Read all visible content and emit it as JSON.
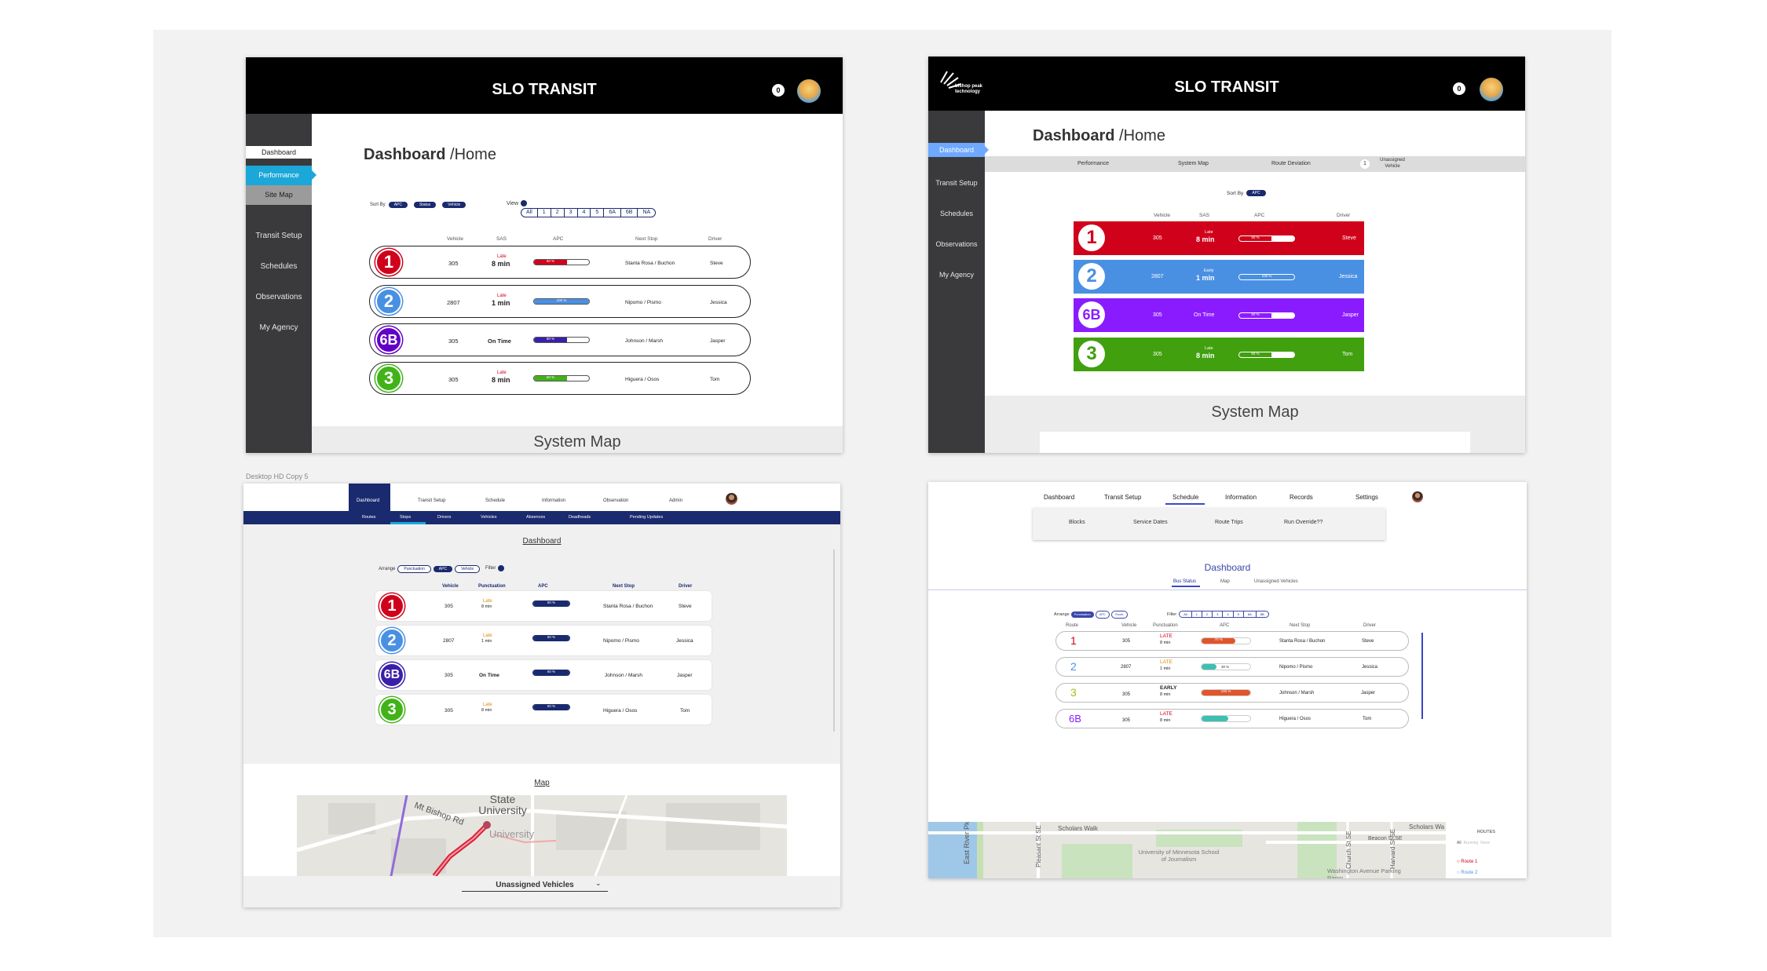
{
  "artboard_label": "Desktop HD Copy 5",
  "f1": {
    "app_title": "SLO TRANSIT",
    "notification_count": "0",
    "nav": [
      "Dashboard",
      "Performance",
      "Site Map",
      "Transit Setup",
      "Schedules",
      "Observations",
      "My Agency"
    ],
    "page_title": "Dashboard",
    "page_subtitle": "/Home",
    "sort_label": "Sort By",
    "sort_options": [
      "APC",
      "Status",
      "Vehicle"
    ],
    "view_label": "View",
    "view_segments": [
      "All",
      "1",
      "2",
      "3",
      "4",
      "5",
      "6A",
      "6B",
      "NA"
    ],
    "columns": [
      "Vehicle",
      "SAS",
      "APC",
      "Next Stop",
      "Driver"
    ],
    "rows": [
      {
        "route": "1",
        "vehicle": "305",
        "status": "Late",
        "sas": "8 min",
        "apc": "60 %",
        "next_stop": "Stanta Rosa / Buchon",
        "driver": "Steve"
      },
      {
        "route": "2",
        "vehicle": "2807",
        "status": "Late",
        "sas": "1 min",
        "apc": "100 %",
        "next_stop": "Nipomo / Pismo",
        "driver": "Jessica"
      },
      {
        "route": "6B",
        "vehicle": "305",
        "status": "",
        "sas": "On Time",
        "apc": "60 %",
        "next_stop": "Johnson / Marsh",
        "driver": "Jasper"
      },
      {
        "route": "3",
        "vehicle": "305",
        "status": "Late",
        "sas": "8 min",
        "apc": "60 %",
        "next_stop": "Higuera / Osos",
        "driver": "Tom"
      }
    ],
    "apc_fill": [
      0.6,
      1.0,
      0.6,
      0.6
    ],
    "system_map_label": "System Map"
  },
  "f2": {
    "app_title": "SLO TRANSIT",
    "logo_text": "bishop peak technology",
    "notification_count": "0",
    "nav": [
      "Dashboard",
      "Transit Setup",
      "Schedules",
      "Observations",
      "My Agency"
    ],
    "page_title": "Dashboard",
    "page_subtitle": "/Home",
    "tabs": [
      "Performance",
      "System Map",
      "Route Deviation"
    ],
    "unassigned_count": "1",
    "unassigned_label": "Unassigned Vehicle",
    "sort_label": "Sort By",
    "sort_value": "APC",
    "columns": [
      "Vehicle",
      "SAS",
      "APC",
      "Driver"
    ],
    "rows": [
      {
        "route": "1",
        "vehicle": "305",
        "status": "Late",
        "sas": "8 min",
        "apc": "60 %",
        "driver": "Steve"
      },
      {
        "route": "2",
        "vehicle": "2807",
        "status": "Early",
        "sas": "1 min",
        "apc": "100 %",
        "driver": "Jessica"
      },
      {
        "route": "6B",
        "vehicle": "305",
        "status": "",
        "sas": "On Time",
        "apc": "60 %",
        "driver": "Jasper"
      },
      {
        "route": "3",
        "vehicle": "305",
        "status": "Late",
        "sas": "8 min",
        "apc": "60 %",
        "driver": "Tom"
      }
    ],
    "apc_fill": [
      0.6,
      1.0,
      0.6,
      0.6
    ],
    "system_map_label": "System Map"
  },
  "f3": {
    "nav": [
      "Dashboard",
      "Transit Setup",
      "Schedule",
      "Information",
      "Observation",
      "Admin"
    ],
    "subnav": [
      "Routes",
      "Stops",
      "Drivers",
      "Vehicles",
      "Absences",
      "Deadheads",
      "Pending Updates"
    ],
    "section_title": "Dashboard",
    "arrange_label": "Arrange",
    "arrange_options": [
      "Punctuation",
      "APC",
      "Vehicle"
    ],
    "filter_label": "Filter",
    "columns": [
      "Vehicle",
      "Punctuation",
      "APC",
      "Next Stop",
      "Driver"
    ],
    "rows": [
      {
        "route": "1",
        "vehicle": "305",
        "status": "Late",
        "time": "8 min",
        "apc": "60 %",
        "next_stop": "Stanta Rosa / Buchon",
        "driver": "Steve"
      },
      {
        "route": "2",
        "vehicle": "2807",
        "status": "Late",
        "time": "1 min",
        "apc": "60 %",
        "next_stop": "Nipomo / Pismo",
        "driver": "Jessica"
      },
      {
        "route": "6B",
        "vehicle": "305",
        "status": "",
        "time": "On Time",
        "apc": "60 %",
        "next_stop": "Johnson / Marsh",
        "driver": "Jasper"
      },
      {
        "route": "3",
        "vehicle": "305",
        "status": "Late",
        "time": "8 min",
        "apc": "60 %",
        "next_stop": "Higuera / Osos",
        "driver": "Tom"
      }
    ],
    "map_title": "Map",
    "map_labels": [
      "State University",
      "Mt Bishop Rd",
      "University"
    ],
    "unassigned_label": "Unassigned Vehicles"
  },
  "f4": {
    "nav": [
      "Dashboard",
      "Transit Setup",
      "Schedule",
      "Information",
      "Records",
      "Settings"
    ],
    "subnav": [
      "Blocks",
      "Service Dates",
      "Route Trips",
      "Run Override??"
    ],
    "section_title": "Dashboard",
    "tabs": [
      "Bus Status",
      "Map",
      "Unassigned Vehicles"
    ],
    "arrange_label": "Arrange",
    "arrange_options": [
      "Punctuation",
      "APC",
      "Route"
    ],
    "filter_label": "Filter",
    "filter_segments": [
      "All",
      "1",
      "2",
      "3",
      "4",
      "5",
      "6A",
      "6B"
    ],
    "columns": [
      "Route",
      "Vehicle",
      "Punctuation",
      "APC",
      "Next Stop",
      "Driver"
    ],
    "rows": [
      {
        "route": "1",
        "vehicle": "305",
        "status": "LATE",
        "time": "8 min",
        "apc": "70 %",
        "next_stop": "Stanta Rosa / Buchon",
        "driver": "Steve"
      },
      {
        "route": "2",
        "vehicle": "2807",
        "status": "LATE",
        "time": "1 min",
        "apc": "30 %",
        "next_stop": "Nipomo / Pismo",
        "driver": "Jessica"
      },
      {
        "route": "3",
        "vehicle": "305",
        "status": "EARLY",
        "time": "8 min",
        "apc": "100 %",
        "next_stop": "Johnson / Marsh",
        "driver": "Jasper"
      },
      {
        "route": "6B",
        "vehicle": "305",
        "status": "LATE",
        "time": "8 min",
        "apc": "",
        "next_stop": "Higuera / Osos",
        "driver": "Tom"
      }
    ],
    "apc_fill": [
      0.7,
      0.3,
      1.0,
      0.55
    ],
    "map_labels": [
      "Scholars Walk",
      "Scholars Wa",
      "Beacon St SE",
      "University of Minnesota School of Journalism",
      "Washington Avenue Parking Ramp",
      "East River Pkwy",
      "Pleasant St SE",
      "Church St SE",
      "Harvard St SE"
    ],
    "legend_title": "ROUTES",
    "legend_toggle": [
      "All",
      "Running",
      "None"
    ],
    "legend_routes": [
      "Route 1",
      "Route 2"
    ]
  },
  "colors": {
    "route1": "#d0021b",
    "route2": "#4a90e2",
    "route6b": "#6200c8",
    "route3": "#41b318",
    "navy": "#1a2a6e",
    "cyan": "#1ba7d8"
  }
}
